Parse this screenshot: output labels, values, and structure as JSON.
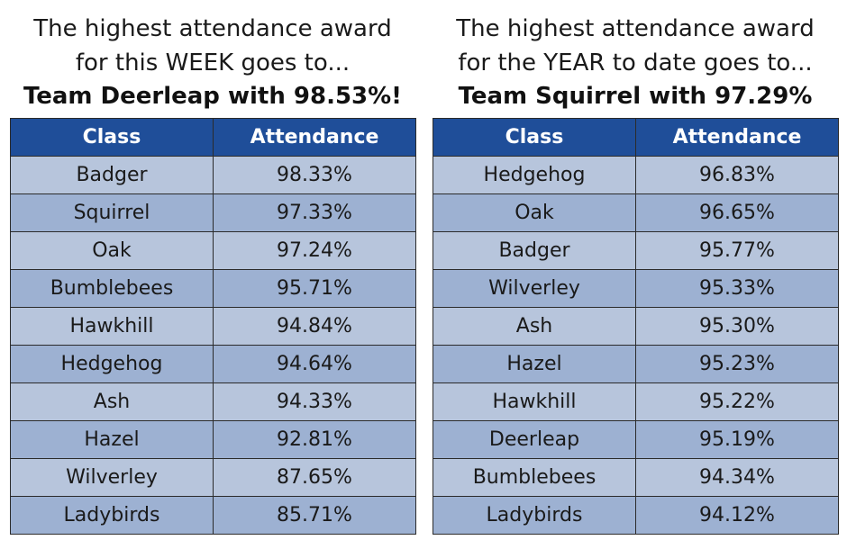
{
  "week": {
    "heading_line1": "The highest attendance award",
    "heading_line2": "for this WEEK goes to...",
    "winner": "Team Deerleap with 98.53%!",
    "columns": [
      "Class",
      "Attendance"
    ],
    "rows": [
      {
        "class": "Badger",
        "attendance": "98.33%"
      },
      {
        "class": "Squirrel",
        "attendance": "97.33%"
      },
      {
        "class": "Oak",
        "attendance": "97.24%"
      },
      {
        "class": "Bumblebees",
        "attendance": "95.71%"
      },
      {
        "class": "Hawkhill",
        "attendance": "94.84%"
      },
      {
        "class": "Hedgehog",
        "attendance": "94.64%"
      },
      {
        "class": "Ash",
        "attendance": "94.33%"
      },
      {
        "class": "Hazel",
        "attendance": "92.81%"
      },
      {
        "class": "Wilverley",
        "attendance": "87.65%"
      },
      {
        "class": "Ladybirds",
        "attendance": "85.71%"
      }
    ]
  },
  "year": {
    "heading_line1": "The highest attendance award",
    "heading_line2": "for the YEAR to date goes to...",
    "winner": "Team Squirrel with 97.29%",
    "columns": [
      "Class",
      "Attendance"
    ],
    "rows": [
      {
        "class": "Hedgehog",
        "attendance": "96.83%"
      },
      {
        "class": "Oak",
        "attendance": "96.65%"
      },
      {
        "class": "Badger",
        "attendance": "95.77%"
      },
      {
        "class": "Wilverley",
        "attendance": "95.33%"
      },
      {
        "class": "Ash",
        "attendance": "95.30%"
      },
      {
        "class": "Hazel",
        "attendance": "95.23%"
      },
      {
        "class": "Hawkhill",
        "attendance": "95.22%"
      },
      {
        "class": "Deerleap",
        "attendance": "95.19%"
      },
      {
        "class": "Bumblebees",
        "attendance": "94.34%"
      },
      {
        "class": "Ladybirds",
        "attendance": "94.12%"
      }
    ]
  },
  "colors": {
    "header_bg": "#1f4e99",
    "row_light": "#b7c5dc",
    "row_dark": "#9db1d2"
  }
}
